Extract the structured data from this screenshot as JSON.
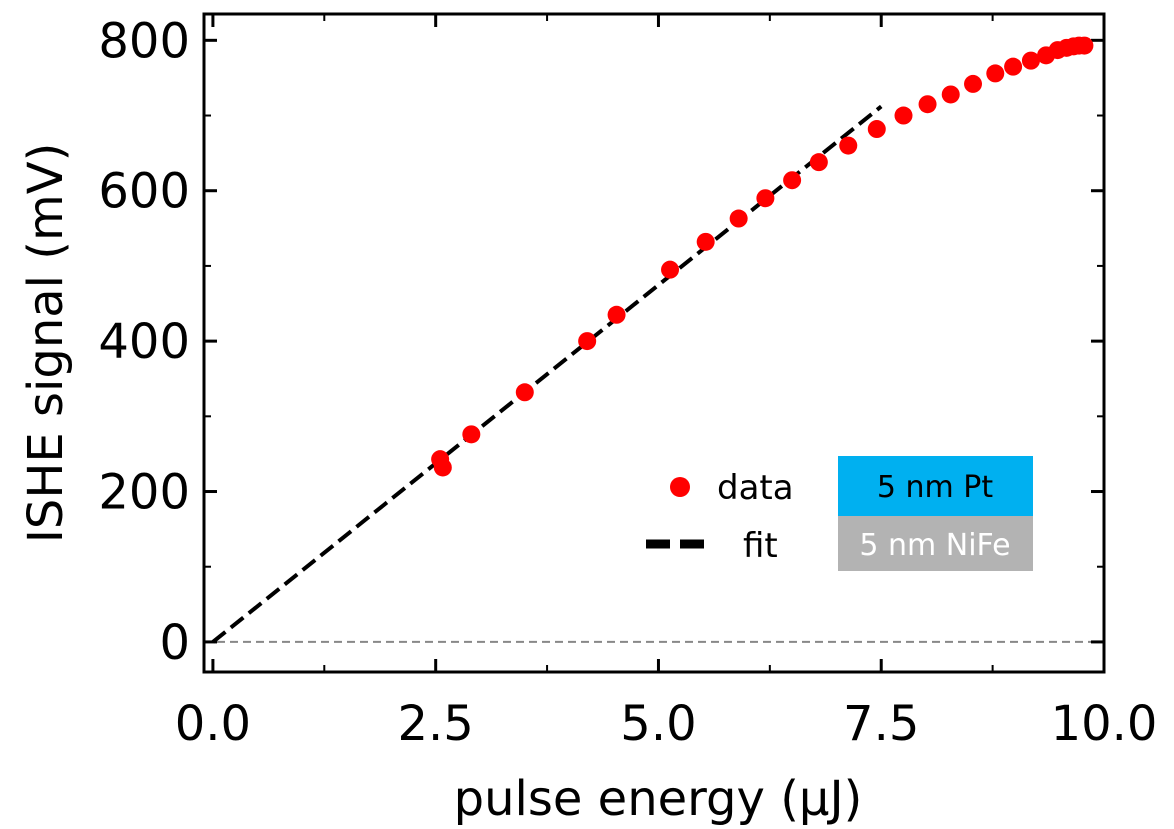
{
  "chart_data": {
    "type": "scatter",
    "xlabel": "pulse energy (μJ)",
    "ylabel": "ISHE signal (mV)",
    "xlim": [
      -0.1,
      10.0
    ],
    "ylim": [
      -40,
      835
    ],
    "x_major_ticks": [
      0,
      2.5,
      5,
      7.5,
      10
    ],
    "x_tick_labels": [
      "0.0",
      "2.5",
      "5.0",
      "7.5",
      "10.0"
    ],
    "x_minor_ticks": [
      1.25,
      3.75,
      6.25,
      8.75
    ],
    "y_major_ticks": [
      0,
      200,
      400,
      600,
      800
    ],
    "y_tick_labels": [
      "0",
      "200",
      "400",
      "600",
      "800"
    ],
    "y_minor_ticks": [
      100,
      300,
      500,
      700
    ],
    "zero_line": {
      "y": 0,
      "color": "#888888",
      "style": "dashed"
    },
    "series": [
      {
        "name": "data",
        "kind": "markers",
        "color": "#ff0000",
        "x": [
          2.55,
          2.58,
          2.9,
          3.5,
          4.2,
          4.53,
          5.13,
          5.53,
          5.9,
          6.2,
          6.5,
          6.8,
          7.13,
          7.45,
          7.75,
          8.02,
          8.28,
          8.53,
          8.78,
          8.98,
          9.18,
          9.35,
          9.48,
          9.58,
          9.66,
          9.72,
          9.78
        ],
        "y": [
          243,
          232,
          276,
          332,
          400,
          435,
          495,
          532,
          563,
          590,
          614,
          638,
          660,
          682,
          700,
          715,
          728,
          742,
          756,
          765,
          773,
          780,
          787,
          790,
          792,
          793,
          793
        ]
      },
      {
        "name": "fit",
        "kind": "line",
        "color": "#000000",
        "style": "dashed",
        "x": [
          0,
          7.5
        ],
        "y": [
          0,
          712
        ]
      }
    ],
    "legend": {
      "placement": "lower-right",
      "entries": [
        {
          "label": "data",
          "marker": "circle",
          "color": "#ff0000"
        },
        {
          "label": "fit",
          "marker": "dashed-line",
          "color": "#000000"
        }
      ]
    },
    "annotations": [
      {
        "text": "5 nm Pt",
        "fill": "#00b0f0",
        "text_color": "#000000"
      },
      {
        "text": "5 nm NiFe",
        "fill": "#b3b3b3",
        "text_color": "#ffffff"
      }
    ]
  }
}
